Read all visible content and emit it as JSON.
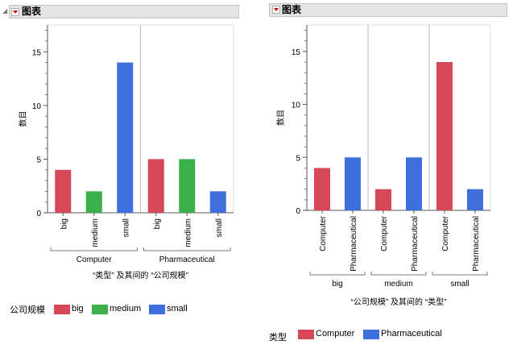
{
  "left": {
    "title": "图表",
    "ylabel": "数目",
    "xlabel": "“类型” 及其间的 “公司规模”",
    "legend_title": "公司规模",
    "legend": [
      {
        "label": "big",
        "color": "#d64858"
      },
      {
        "label": "medium",
        "color": "#3aaf4a"
      },
      {
        "label": "small",
        "color": "#3f6fdc"
      }
    ],
    "yticks": [
      "0",
      "5",
      "10",
      "15"
    ],
    "groups": [
      "Computer",
      "Pharmaceutical"
    ]
  },
  "right": {
    "title": "图表",
    "ylabel": "数目",
    "xlabel": "“公司规模” 及其间的 “类型”",
    "legend_title": "类型",
    "legend": [
      {
        "label": "Computer",
        "color": "#d64858"
      },
      {
        "label": "Pharmaceutical",
        "color": "#3f6fdc"
      }
    ],
    "yticks": [
      "0",
      "5",
      "10",
      "15"
    ],
    "groups": [
      "big",
      "medium",
      "small"
    ]
  },
  "chart_data": [
    {
      "type": "bar",
      "title": "图表",
      "ylabel": "数目",
      "xlabel": "“类型” 及其间的 “公司规模”",
      "ylim": [
        0,
        17.5
      ],
      "groups": [
        {
          "name": "Computer",
          "bars": [
            {
              "label": "big",
              "value": 4,
              "color": "#d64858"
            },
            {
              "label": "medium",
              "value": 2,
              "color": "#3aaf4a"
            },
            {
              "label": "small",
              "value": 14,
              "color": "#3f6fdc"
            }
          ]
        },
        {
          "name": "Pharmaceutical",
          "bars": [
            {
              "label": "big",
              "value": 5,
              "color": "#d64858"
            },
            {
              "label": "medium",
              "value": 5,
              "color": "#3aaf4a"
            },
            {
              "label": "small",
              "value": 2,
              "color": "#3f6fdc"
            }
          ]
        }
      ]
    },
    {
      "type": "bar",
      "title": "图表",
      "ylabel": "数目",
      "xlabel": "“公司规模” 及其间的 “类型”",
      "ylim": [
        0,
        17.5
      ],
      "groups": [
        {
          "name": "big",
          "bars": [
            {
              "label": "Computer",
              "value": 4,
              "color": "#d64858"
            },
            {
              "label": "Pharmaceutical",
              "value": 5,
              "color": "#3f6fdc"
            }
          ]
        },
        {
          "name": "medium",
          "bars": [
            {
              "label": "Computer",
              "value": 2,
              "color": "#d64858"
            },
            {
              "label": "Pharmaceutical",
              "value": 5,
              "color": "#3f6fdc"
            }
          ]
        },
        {
          "name": "small",
          "bars": [
            {
              "label": "Computer",
              "value": 14,
              "color": "#d64858"
            },
            {
              "label": "Pharmaceutical",
              "value": 2,
              "color": "#3f6fdc"
            }
          ]
        }
      ]
    }
  ]
}
